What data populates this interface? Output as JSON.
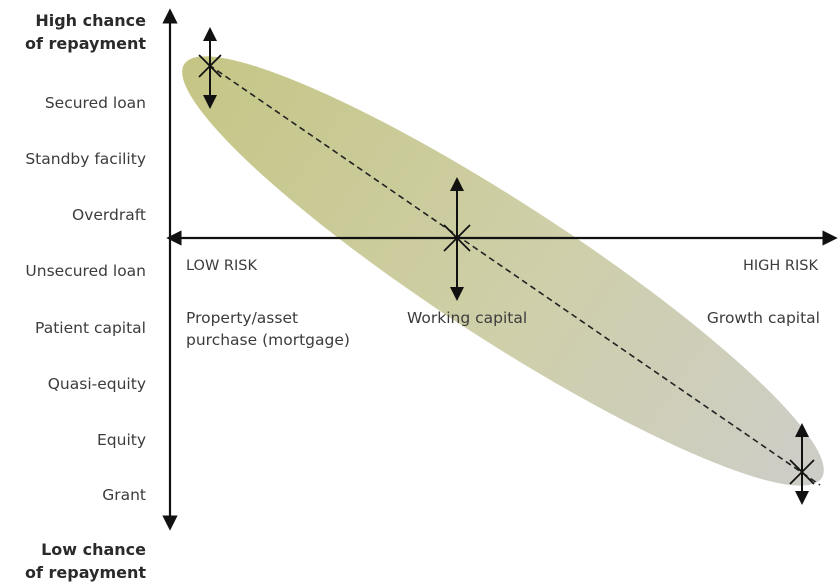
{
  "top_label": [
    "High chance",
    "of repayment"
  ],
  "bottom_label": [
    "Low chance",
    "of repayment"
  ],
  "funding_types": [
    "Secured loan",
    "Standby facility",
    "Overdraft",
    "Unsecured loan",
    "Patient capital",
    "Quasi-equity",
    "Equity",
    "Grant"
  ],
  "axis": {
    "low_risk": "LOW RISK",
    "high_risk": "HIGH RISK"
  },
  "purposes": {
    "property": [
      "Property/asset",
      "purchase (mortgage)"
    ],
    "working": "Working capital",
    "growth": "Growth capital"
  },
  "colors": {
    "ellipse_left": "#c9c98a",
    "ellipse_right": "#cbcbc4",
    "axis": "#1a1a1a"
  }
}
